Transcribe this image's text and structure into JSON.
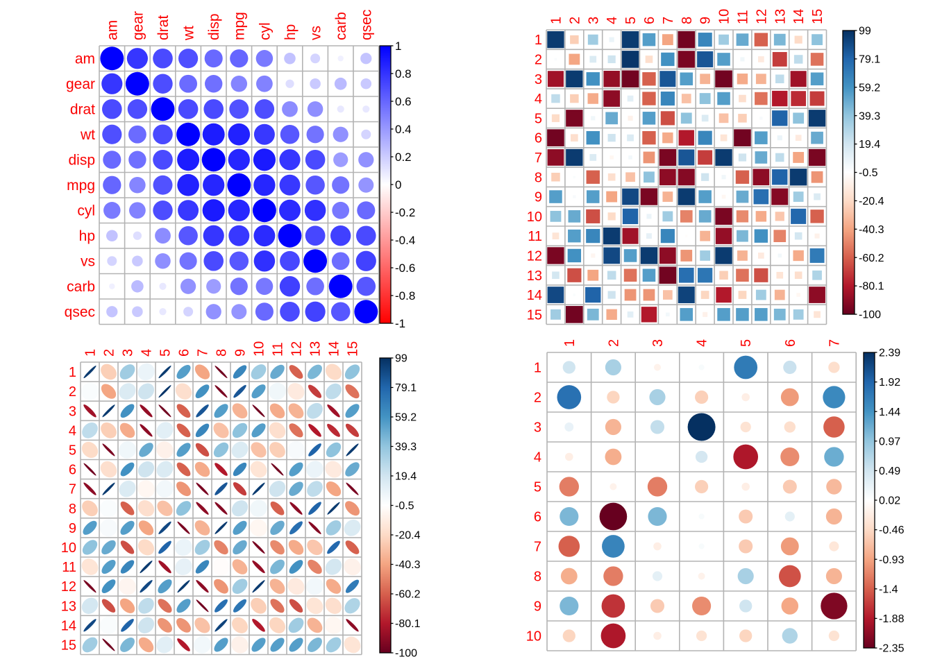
{
  "figure": {
    "background": "#ffffff",
    "label_color": "#fa0000",
    "grid_color": "#b3b3b3",
    "tick_label_color": "#000000",
    "rdbu_palette": [
      "#67001F",
      "#B2182B",
      "#D6604D",
      "#F4A582",
      "#FDDBC7",
      "#FFFFFF",
      "#D1E5F0",
      "#92C5DE",
      "#4393C3",
      "#2166AC",
      "#053061"
    ],
    "bwr_palette": [
      "#FF0000",
      "#FFFFFF",
      "#0000FF"
    ]
  },
  "chart_data": [
    {
      "id": "mtcars-abs-correlation-circles",
      "type": "heatmap",
      "method": "circle",
      "colormap": "bwr",
      "vmin": -1,
      "vmax": 1,
      "col_labels": [
        "am",
        "gear",
        "drat",
        "wt",
        "disp",
        "mpg",
        "cyl",
        "hp",
        "vs",
        "carb",
        "qsec"
      ],
      "row_labels": [
        "am",
        "gear",
        "drat",
        "wt",
        "disp",
        "mpg",
        "cyl",
        "hp",
        "vs",
        "carb",
        "qsec"
      ],
      "values": [
        [
          1.0,
          0.79,
          0.71,
          0.69,
          0.59,
          0.6,
          0.52,
          0.24,
          0.17,
          0.06,
          0.23
        ],
        [
          0.79,
          1.0,
          0.7,
          0.58,
          0.56,
          0.48,
          0.49,
          0.13,
          0.21,
          0.27,
          0.21
        ],
        [
          0.71,
          0.7,
          1.0,
          0.71,
          0.71,
          0.68,
          0.7,
          0.45,
          0.44,
          0.09,
          0.09
        ],
        [
          0.69,
          0.58,
          0.71,
          1.0,
          0.89,
          0.87,
          0.78,
          0.66,
          0.55,
          0.43,
          0.17
        ],
        [
          0.59,
          0.56,
          0.71,
          0.89,
          1.0,
          0.85,
          0.9,
          0.79,
          0.71,
          0.39,
          0.43
        ],
        [
          0.6,
          0.48,
          0.68,
          0.87,
          0.85,
          1.0,
          0.85,
          0.78,
          0.66,
          0.55,
          0.42
        ],
        [
          0.52,
          0.49,
          0.7,
          0.78,
          0.9,
          0.85,
          1.0,
          0.83,
          0.81,
          0.53,
          0.59
        ],
        [
          0.24,
          0.13,
          0.45,
          0.66,
          0.79,
          0.78,
          0.83,
          1.0,
          0.72,
          0.75,
          0.71
        ],
        [
          0.17,
          0.21,
          0.44,
          0.55,
          0.71,
          0.66,
          0.81,
          0.72,
          1.0,
          0.57,
          0.74
        ],
        [
          0.06,
          0.27,
          0.09,
          0.43,
          0.39,
          0.55,
          0.53,
          0.75,
          0.57,
          1.0,
          0.66
        ],
        [
          0.23,
          0.21,
          0.09,
          0.17,
          0.43,
          0.42,
          0.59,
          0.71,
          0.74,
          0.66,
          1.0
        ]
      ],
      "colorbar_ticks": [
        "1",
        "0.8",
        "0.6",
        "0.4",
        "0.2",
        "0",
        "-0.2",
        "-0.4",
        "-0.6",
        "-0.8",
        "-1"
      ]
    },
    {
      "id": "random-matrix-squares",
      "type": "heatmap",
      "method": "square",
      "colormap": "rdbu",
      "vmin": -100,
      "vmax": 99,
      "col_labels": [
        "1",
        "2",
        "3",
        "4",
        "5",
        "6",
        "7",
        "8",
        "9",
        "10",
        "11",
        "12",
        "13",
        "14",
        "15"
      ],
      "row_labels": [
        "1",
        "2",
        "3",
        "4",
        "5",
        "6",
        "7",
        "8",
        "9",
        "10",
        "11",
        "12",
        "13",
        "14",
        "15"
      ],
      "values": [
        [
          95,
          -25,
          35,
          8,
          95,
          55,
          -40,
          -97,
          65,
          35,
          50,
          -60,
          45,
          -20,
          40
        ],
        [
          2,
          -40,
          15,
          20,
          97,
          -18,
          60,
          -95,
          85,
          55,
          6,
          -12,
          -70,
          25,
          -55
        ],
        [
          -85,
          95,
          60,
          -88,
          -97,
          -60,
          85,
          55,
          -35,
          -97,
          -38,
          -35,
          25,
          -85,
          55
        ],
        [
          25,
          -25,
          -38,
          -90,
          12,
          -60,
          65,
          -30,
          40,
          55,
          -18,
          -55,
          -80,
          -75,
          -70
        ],
        [
          -20,
          -95,
          6,
          50,
          -8,
          55,
          -65,
          40,
          15,
          -30,
          -25,
          3,
          80,
          40,
          95
        ],
        [
          -97,
          -18,
          60,
          20,
          15,
          -60,
          -38,
          -80,
          65,
          -15,
          -97,
          55,
          8,
          -12,
          50
        ],
        [
          -90,
          95,
          15,
          -5,
          5,
          -45,
          -95,
          85,
          -70,
          95,
          20,
          50,
          25,
          -40,
          -95
        ],
        [
          -25,
          2,
          -60,
          -18,
          -30,
          40,
          -90,
          -92,
          20,
          6,
          -60,
          -90,
          80,
          95,
          -45
        ],
        [
          55,
          3,
          55,
          -40,
          90,
          -95,
          -35,
          95,
          55,
          -5,
          50,
          75,
          -92,
          35,
          15
        ],
        [
          40,
          50,
          -65,
          -20,
          80,
          8,
          35,
          -50,
          50,
          -95,
          -48,
          -38,
          -28,
          78,
          -60
        ],
        [
          -15,
          55,
          65,
          95,
          -85,
          10,
          65,
          -2,
          -35,
          -88,
          45,
          60,
          -50,
          18,
          -8
        ],
        [
          -95,
          60,
          -6,
          90,
          55,
          95,
          -90,
          -45,
          35,
          95,
          -35,
          -12,
          5,
          -38,
          70
        ],
        [
          18,
          -65,
          -40,
          25,
          -55,
          55,
          -97,
          75,
          72,
          -25,
          -55,
          -65,
          -15,
          -18,
          30
        ],
        [
          90,
          2,
          80,
          20,
          -45,
          -45,
          -30,
          92,
          -22,
          -80,
          -22,
          35,
          -35,
          -5,
          -90
        ],
        [
          35,
          -97,
          45,
          -38,
          12,
          -80,
          5,
          55,
          -8,
          55,
          55,
          55,
          45,
          35,
          -15
        ]
      ],
      "colorbar_ticks": [
        "99",
        "79.1",
        "59.2",
        "39.3",
        "19.4",
        "-0.5",
        "-20.4",
        "-40.3",
        "-60.2",
        "-80.1",
        "-100"
      ]
    },
    {
      "id": "random-matrix-ellipses",
      "type": "heatmap",
      "method": "ellipse",
      "colormap": "rdbu",
      "vmin": -100,
      "vmax": 99,
      "col_labels": [
        "1",
        "2",
        "3",
        "4",
        "5",
        "6",
        "7",
        "8",
        "9",
        "10",
        "11",
        "12",
        "13",
        "14",
        "15"
      ],
      "row_labels": [
        "1",
        "2",
        "3",
        "4",
        "5",
        "6",
        "7",
        "8",
        "9",
        "10",
        "11",
        "12",
        "13",
        "14",
        "15"
      ],
      "values": [
        [
          95,
          -25,
          35,
          8,
          95,
          55,
          -40,
          -97,
          65,
          35,
          50,
          -60,
          45,
          -20,
          40
        ],
        [
          2,
          -40,
          15,
          20,
          97,
          -18,
          60,
          -95,
          85,
          55,
          6,
          -12,
          -70,
          25,
          -55
        ],
        [
          -85,
          95,
          60,
          -88,
          -97,
          -60,
          85,
          55,
          -35,
          -97,
          -38,
          -35,
          25,
          -85,
          55
        ],
        [
          25,
          -25,
          -38,
          -90,
          12,
          -60,
          65,
          -30,
          40,
          55,
          -18,
          -55,
          -80,
          -75,
          -70
        ],
        [
          -20,
          -95,
          6,
          50,
          -8,
          55,
          -65,
          40,
          15,
          -30,
          -25,
          3,
          80,
          40,
          95
        ],
        [
          -97,
          -18,
          60,
          20,
          15,
          -60,
          -38,
          -80,
          65,
          -15,
          -97,
          55,
          8,
          -12,
          50
        ],
        [
          -90,
          95,
          15,
          -5,
          5,
          -45,
          -95,
          85,
          -70,
          95,
          20,
          50,
          25,
          -40,
          -95
        ],
        [
          -25,
          2,
          -60,
          -18,
          -30,
          40,
          -90,
          -92,
          20,
          6,
          -60,
          -90,
          80,
          95,
          -45
        ],
        [
          55,
          3,
          55,
          -40,
          90,
          -95,
          -35,
          95,
          55,
          -5,
          50,
          75,
          -92,
          35,
          15
        ],
        [
          40,
          50,
          -65,
          -20,
          80,
          8,
          35,
          -50,
          50,
          -95,
          -48,
          -38,
          -28,
          78,
          -60
        ],
        [
          -15,
          55,
          65,
          95,
          -85,
          10,
          65,
          -2,
          -35,
          -88,
          45,
          60,
          -50,
          18,
          -8
        ],
        [
          -95,
          60,
          -6,
          90,
          55,
          95,
          -90,
          -45,
          35,
          95,
          -35,
          -12,
          5,
          -38,
          70
        ],
        [
          18,
          -65,
          -40,
          25,
          -55,
          55,
          -97,
          75,
          72,
          -25,
          -55,
          -65,
          -15,
          -18,
          30
        ],
        [
          90,
          2,
          80,
          20,
          -45,
          -45,
          -30,
          92,
          -22,
          -80,
          -22,
          35,
          -35,
          -5,
          -90
        ],
        [
          35,
          -97,
          45,
          -38,
          12,
          -80,
          5,
          55,
          -8,
          55,
          55,
          55,
          45,
          35,
          -15
        ]
      ],
      "colorbar_ticks": [
        "99",
        "79.1",
        "59.2",
        "39.3",
        "19.4",
        "-0.5",
        "-20.4",
        "-40.3",
        "-60.2",
        "-80.1",
        "-100"
      ]
    },
    {
      "id": "random-matrix-circles",
      "type": "heatmap",
      "method": "circle",
      "colormap": "rdbu",
      "vmin": -2.35,
      "vmax": 2.39,
      "col_labels": [
        "1",
        "2",
        "3",
        "4",
        "5",
        "6",
        "7"
      ],
      "row_labels": [
        "1",
        "2",
        "3",
        "4",
        "5",
        "6",
        "7",
        "8",
        "9",
        "10"
      ],
      "values": [
        [
          0.5,
          0.8,
          -0.15,
          0.1,
          1.7,
          0.55,
          -0.4
        ],
        [
          1.8,
          -0.5,
          0.8,
          -0.55,
          -0.2,
          -1.0,
          1.55
        ],
        [
          0.25,
          -0.8,
          0.6,
          2.39,
          -0.35,
          -0.4,
          -1.4
        ],
        [
          -0.2,
          -0.85,
          0.02,
          0.45,
          -1.9,
          -1.1,
          1.2
        ],
        [
          -1.2,
          -0.15,
          -1.2,
          -0.55,
          -0.2,
          -0.6,
          -0.75
        ],
        [
          1.1,
          -2.35,
          1.1,
          0.1,
          -0.6,
          0.3,
          -0.8
        ],
        [
          -1.4,
          1.6,
          -0.2,
          0.1,
          -0.6,
          -1.0,
          -0.3
        ],
        [
          -0.85,
          -1.2,
          0.3,
          -0.15,
          0.8,
          -1.5,
          -0.8
        ],
        [
          1.1,
          -1.7,
          -0.6,
          -1.1,
          0.5,
          -0.9,
          -2.2
        ],
        [
          -0.5,
          -1.9,
          -0.2,
          -0.35,
          -0.5,
          0.75,
          -0.35
        ]
      ],
      "colorbar_ticks": [
        "2.39",
        "1.92",
        "1.44",
        "0.97",
        "0.49",
        "0.02",
        "-0.46",
        "-0.93",
        "-1.4",
        "-1.88",
        "-2.35"
      ]
    }
  ]
}
